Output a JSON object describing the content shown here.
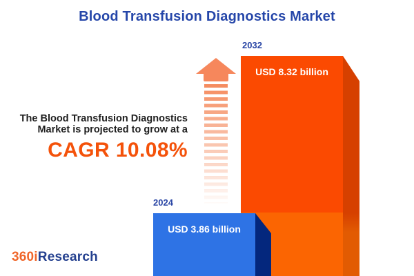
{
  "title": "Blood Transfusion Diagnostics Market",
  "annotation": {
    "line1": "The Blood Transfusion Diagnostics",
    "line2": "Market is projected to grow at a",
    "cagr": "CAGR 10.08%"
  },
  "bars": [
    {
      "year": "2024",
      "value_label": "USD 3.86 billion",
      "value_usd_billion": 3.86,
      "front_color": "#2e73e5",
      "side_color": "#04277d"
    },
    {
      "year": "2032",
      "value_label": "USD 8.32 billion",
      "value_usd_billion": 8.32,
      "front_color_upper": "#fb4a01",
      "front_color_lower": "#fb6502",
      "side_color_upper": "#d64000",
      "side_color_lower": "#e25b02"
    }
  ],
  "logo": {
    "prefix": "360i",
    "suffix": "Research",
    "prefix_color": "#f0662a",
    "suffix_color": "#24408f"
  },
  "colors": {
    "background": "#ffffff",
    "title_blue": "#2546a9",
    "year_label_blue": "#2a46a5",
    "accent_orange": "#f4520a",
    "annotation_text": "#1f1f1f",
    "arrow_salmon": "#f6875c",
    "bar_value_text": "#ffffff"
  },
  "chart_data": {
    "type": "bar",
    "categories": [
      "2024",
      "2032"
    ],
    "values": [
      3.86,
      8.32
    ],
    "unit": "USD billion",
    "value_labels": [
      "USD 3.86 billion",
      "USD 8.32 billion"
    ],
    "series_colors": [
      "#2e73e5",
      "#fb4a01"
    ],
    "title": "Blood Transfusion Diagnostics Market",
    "annotation": "The Blood Transfusion Diagnostics Market is projected to grow at a CAGR 10.08%",
    "cagr_percent": 10.08,
    "legend": false,
    "axes_visible": false,
    "grid": false,
    "style": "3d-infographic-bars with growth arrow"
  }
}
